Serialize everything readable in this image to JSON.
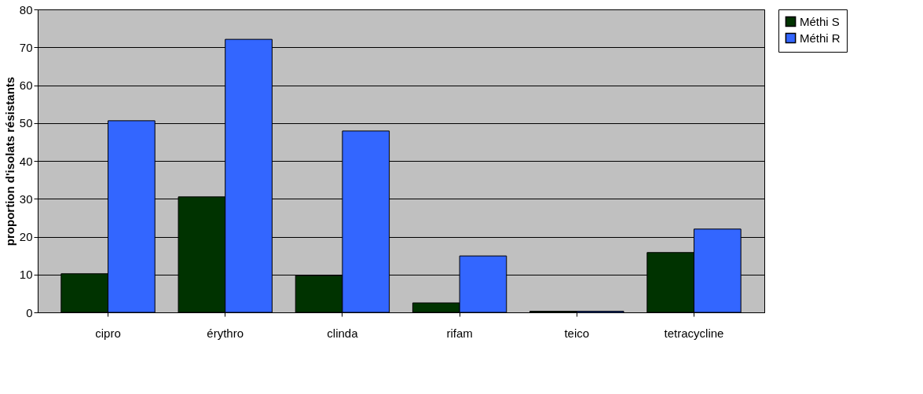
{
  "chart_data": {
    "type": "bar",
    "ylabel": "proportion d'isolats résistants",
    "categories": [
      "cipro",
      "érythro",
      "clinda",
      "rifam",
      "teico",
      "tetracycline"
    ],
    "series": [
      {
        "name": "Méthi S",
        "color": "#003300",
        "values": [
          10.2,
          30.5,
          9.7,
          2.5,
          0.3,
          15.8
        ]
      },
      {
        "name": "Méthi R",
        "color": "#3366ff",
        "values": [
          50.6,
          72.1,
          47.9,
          14.9,
          0.3,
          22
        ]
      }
    ],
    "ylim": [
      0,
      80
    ],
    "yticks": [
      0,
      10,
      20,
      30,
      40,
      50,
      60,
      70,
      80
    ],
    "grid": "y",
    "legend": "right"
  }
}
